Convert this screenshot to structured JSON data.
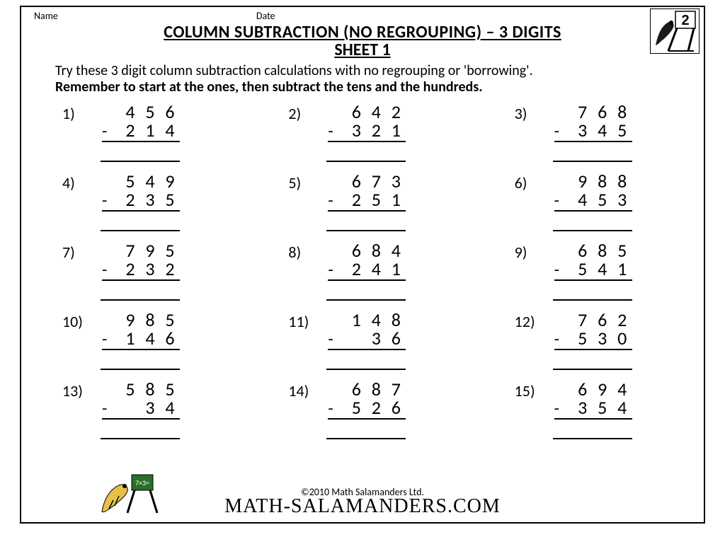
{
  "meta": {
    "name_label": "Name",
    "date_label": "Date"
  },
  "title": {
    "line1": "COLUMN SUBTRACTION (NO REGROUPING) – 3 DIGITS",
    "line2": "SHEET 1"
  },
  "instructions": {
    "line1": "Try these 3 digit column subtraction calculations with no regrouping or 'borrowing'.",
    "line2_bold": "Remember to start at the ones, then subtract the tens and the hundreds."
  },
  "corner_logo": {
    "digit": "2"
  },
  "colors": {
    "text": "#000000",
    "background": "#ffffff",
    "border": "#000000"
  },
  "typography": {
    "title_fontsize": 24,
    "body_fontsize": 20,
    "digit_fontsize": 26,
    "brand_font": "Comic Sans MS"
  },
  "operator": "-",
  "problems": [
    {
      "n": "1)",
      "top": [
        "4",
        "5",
        "6"
      ],
      "bot": [
        "2",
        "1",
        "4"
      ]
    },
    {
      "n": "2)",
      "top": [
        "6",
        "4",
        "2"
      ],
      "bot": [
        "3",
        "2",
        "1"
      ]
    },
    {
      "n": "3)",
      "top": [
        "7",
        "6",
        "8"
      ],
      "bot": [
        "3",
        "4",
        "5"
      ]
    },
    {
      "n": "4)",
      "top": [
        "5",
        "4",
        "9"
      ],
      "bot": [
        "2",
        "3",
        "5"
      ]
    },
    {
      "n": "5)",
      "top": [
        "6",
        "7",
        "3"
      ],
      "bot": [
        "2",
        "5",
        "1"
      ]
    },
    {
      "n": "6)",
      "top": [
        "9",
        "8",
        "8"
      ],
      "bot": [
        "4",
        "5",
        "3"
      ]
    },
    {
      "n": "7)",
      "top": [
        "7",
        "9",
        "5"
      ],
      "bot": [
        "2",
        "3",
        "2"
      ]
    },
    {
      "n": "8)",
      "top": [
        "6",
        "8",
        "4"
      ],
      "bot": [
        "2",
        "4",
        "1"
      ]
    },
    {
      "n": "9)",
      "top": [
        "6",
        "8",
        "5"
      ],
      "bot": [
        "5",
        "4",
        "1"
      ]
    },
    {
      "n": "10)",
      "top": [
        "9",
        "8",
        "5"
      ],
      "bot": [
        "1",
        "4",
        "6"
      ]
    },
    {
      "n": "11)",
      "top": [
        "1",
        "4",
        "8"
      ],
      "bot": [
        "",
        "3",
        "6"
      ]
    },
    {
      "n": "12)",
      "top": [
        "7",
        "6",
        "2"
      ],
      "bot": [
        "5",
        "3",
        "0"
      ]
    },
    {
      "n": "13)",
      "top": [
        "5",
        "8",
        "5"
      ],
      "bot": [
        "",
        "3",
        "4"
      ]
    },
    {
      "n": "14)",
      "top": [
        "6",
        "8",
        "7"
      ],
      "bot": [
        "5",
        "2",
        "6"
      ]
    },
    {
      "n": "15)",
      "top": [
        "6",
        "9",
        "4"
      ],
      "bot": [
        "3",
        "5",
        "4"
      ]
    }
  ],
  "problems_per_row": 3,
  "footer": {
    "copyright": "©2010 Math Salamanders Ltd.",
    "brand": "MATH-SALAMANDERS.COM"
  }
}
